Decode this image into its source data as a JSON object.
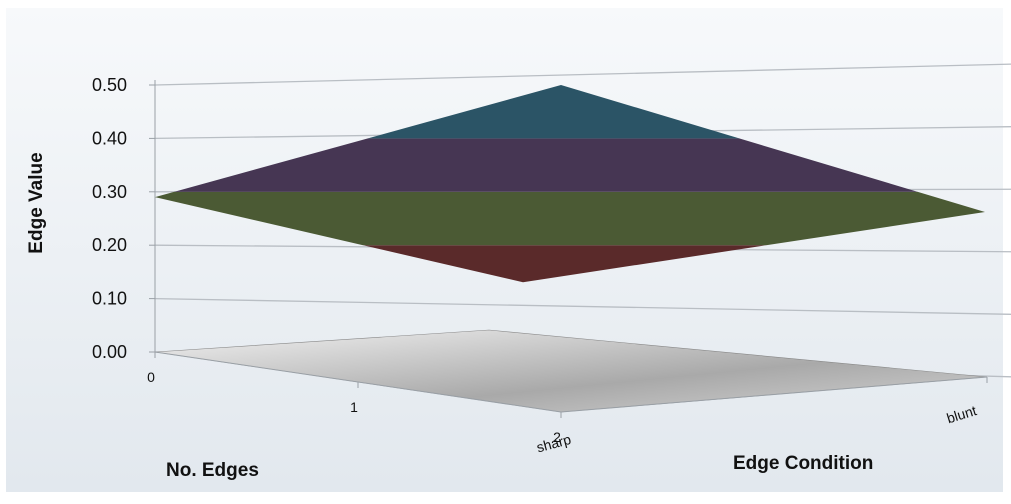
{
  "chart_data": {
    "type": "surface",
    "title": "",
    "ylabel": "Edge Value",
    "xlabel": "No. Edges",
    "zlabel": "Edge Condition",
    "ylim": [
      0,
      0.5
    ],
    "y_ticks": [
      "0.00",
      "0.10",
      "0.20",
      "0.30",
      "0.40",
      "0.50"
    ],
    "x_ticks": [
      "0",
      "1",
      "2"
    ],
    "z_ticks": [
      "sharp",
      "blunt"
    ],
    "surface": {
      "no_edges": [
        0,
        2
      ],
      "edge_condition": [
        "sharp",
        "blunt"
      ],
      "values": [
        [
          0.29,
          0.5
        ],
        [
          0.14,
          0.27
        ]
      ]
    },
    "band_colors": [
      "#5a2a2a",
      "#4b5a34",
      "#463653",
      "#2b5466"
    ],
    "band_ranges": [
      [
        0.1,
        0.2
      ],
      [
        0.2,
        0.3
      ],
      [
        0.3,
        0.4
      ],
      [
        0.4,
        0.5
      ]
    ],
    "grid": true,
    "legend": "none"
  }
}
